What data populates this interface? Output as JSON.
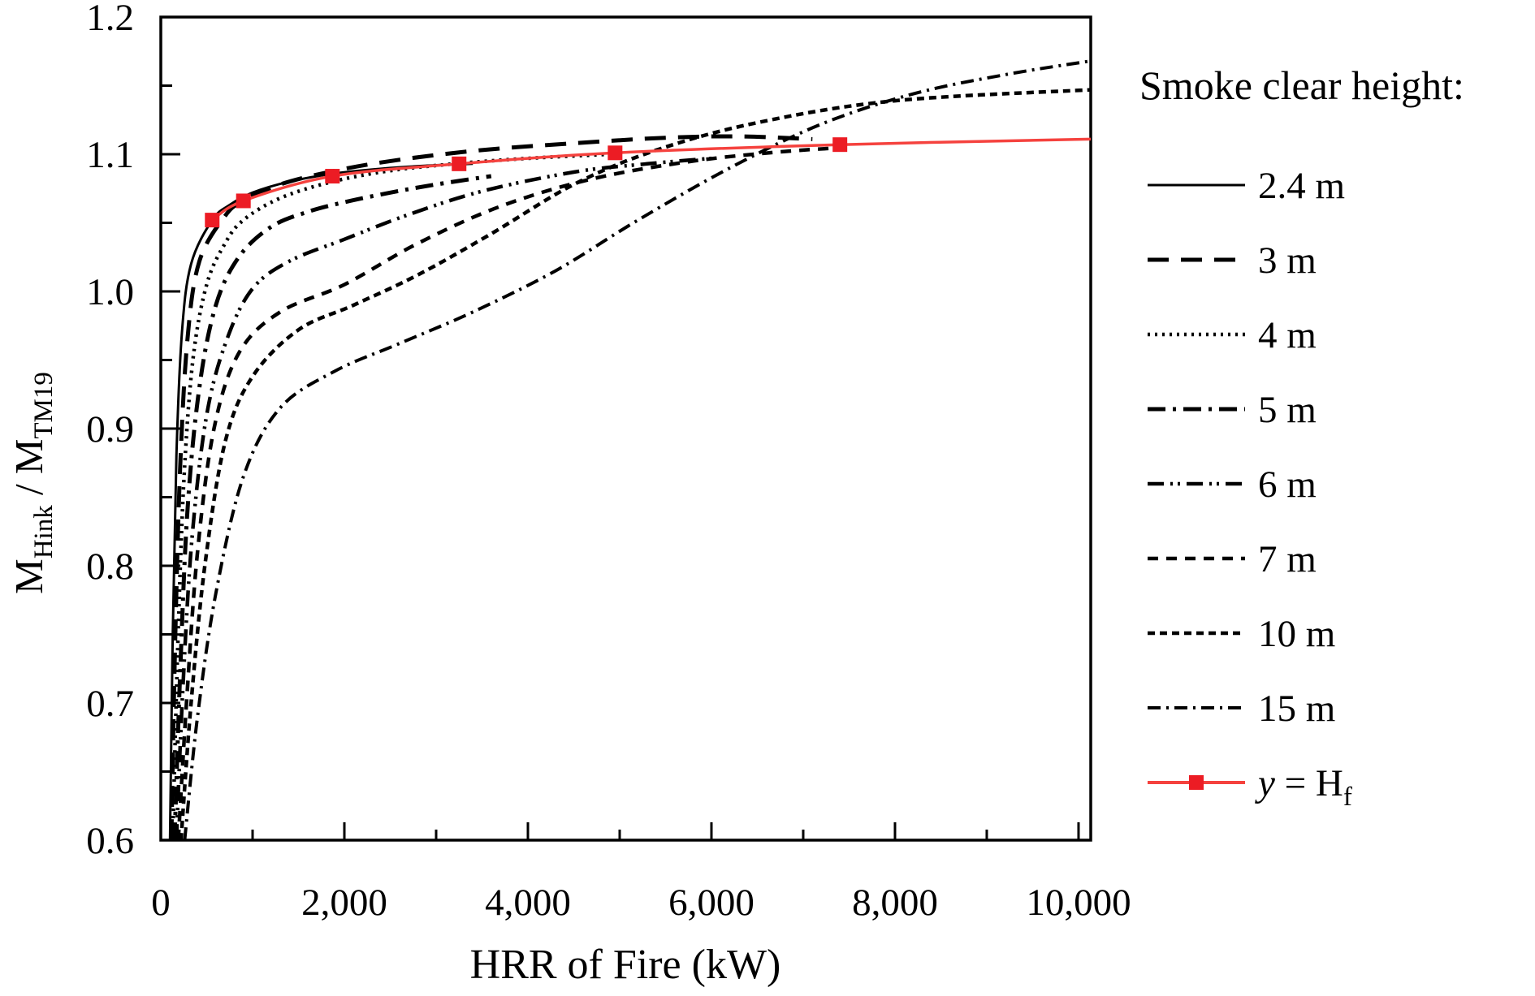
{
  "figure": {
    "background": "#ffffff",
    "frame_color": "#000000"
  },
  "axes": {
    "x": {
      "label": "HRR of Fire (kW)",
      "range": [
        0,
        10133
      ],
      "major_tick_values": [
        0,
        2000,
        4000,
        6000,
        8000,
        10000
      ],
      "major_tick_labels": [
        "0",
        "2,000",
        "4,000",
        "6,000",
        "8,000",
        "10,000"
      ],
      "minor_step": 1000
    },
    "y": {
      "label_plain": "M_Hink / M_TM19",
      "label_parts": [
        {
          "t": "M"
        },
        {
          "t": "Hink",
          "sub": true
        },
        {
          "t": " / M"
        },
        {
          "t": "TM19",
          "sub": true
        }
      ],
      "range": [
        0.6,
        1.2
      ],
      "major_tick_values": [
        0.6,
        0.7,
        0.8,
        0.9,
        1.0,
        1.1,
        1.2
      ],
      "major_tick_labels": [
        "0.6",
        "0.7",
        "0.8",
        "0.9",
        "1.0",
        "1.1",
        "1.2"
      ],
      "minor_step": 0.05
    }
  },
  "legend": {
    "title": "Smoke clear height:",
    "position": "right"
  },
  "colors": {
    "black": "#000000",
    "red_line": "#f5423e",
    "red_marker": "#ec1c24"
  },
  "chart_data": {
    "type": "line",
    "title": "",
    "xlabel": "HRR of Fire (kW)",
    "ylabel": "M_Hink / M_TM19",
    "xlim": [
      0,
      10133
    ],
    "ylim": [
      0.6,
      1.2
    ],
    "grid": false,
    "legend_position": "right",
    "series": [
      {
        "name": "2.4 m",
        "style": {
          "color": "#000000",
          "width": 3,
          "dash": []
        },
        "points": [
          [
            100,
            0.6
          ],
          [
            130,
            0.75
          ],
          [
            170,
            0.88
          ],
          [
            230,
            0.97
          ],
          [
            330,
            1.02
          ],
          [
            560,
            1.052
          ],
          [
            750,
            1.063
          ],
          [
            1000,
            1.072
          ],
          [
            1400,
            1.08
          ],
          [
            1900,
            1.086
          ],
          [
            2500,
            1.09
          ],
          [
            3000,
            1.092
          ],
          [
            3400,
            1.093
          ]
        ]
      },
      {
        "name": "3 m",
        "style": {
          "color": "#000000",
          "width": 5,
          "dash": [
            26,
            15
          ]
        },
        "points": [
          [
            115,
            0.6
          ],
          [
            155,
            0.74
          ],
          [
            210,
            0.87
          ],
          [
            290,
            0.965
          ],
          [
            420,
            1.022
          ],
          [
            700,
            1.055
          ],
          [
            900,
            1.066
          ],
          [
            1300,
            1.078
          ],
          [
            1900,
            1.088
          ],
          [
            2600,
            1.096
          ],
          [
            3500,
            1.103
          ],
          [
            4500,
            1.108
          ],
          [
            5500,
            1.112
          ],
          [
            6300,
            1.113
          ],
          [
            7100,
            1.111
          ]
        ]
      },
      {
        "name": "4 m",
        "style": {
          "color": "#000000",
          "width": 4.5,
          "dash": [
            3,
            6
          ]
        },
        "points": [
          [
            130,
            0.6
          ],
          [
            180,
            0.73
          ],
          [
            250,
            0.86
          ],
          [
            350,
            0.95
          ],
          [
            500,
            1.005
          ],
          [
            700,
            1.035
          ],
          [
            900,
            1.052
          ],
          [
            1300,
            1.068
          ],
          [
            1870,
            1.08
          ],
          [
            2500,
            1.088
          ],
          [
            3200,
            1.093
          ],
          [
            4000,
            1.097
          ],
          [
            4900,
            1.1
          ]
        ]
      },
      {
        "name": "5 m",
        "style": {
          "color": "#000000",
          "width": 5,
          "dash": [
            22,
            9,
            4,
            9
          ]
        },
        "points": [
          [
            150,
            0.6
          ],
          [
            210,
            0.72
          ],
          [
            290,
            0.84
          ],
          [
            420,
            0.93
          ],
          [
            600,
            0.99
          ],
          [
            850,
            1.025
          ],
          [
            1200,
            1.047
          ],
          [
            1600,
            1.058
          ],
          [
            2000,
            1.065
          ],
          [
            2500,
            1.072
          ],
          [
            3000,
            1.078
          ],
          [
            3600,
            1.084
          ]
        ]
      },
      {
        "name": "6 m",
        "style": {
          "color": "#000000",
          "width": 4.5,
          "dash": [
            20,
            8,
            3,
            6,
            3,
            8
          ]
        },
        "points": [
          [
            170,
            0.6
          ],
          [
            240,
            0.71
          ],
          [
            340,
            0.82
          ],
          [
            500,
            0.91
          ],
          [
            720,
            0.965
          ],
          [
            1000,
            1.002
          ],
          [
            1400,
            1.022
          ],
          [
            2000,
            1.038
          ],
          [
            2700,
            1.056
          ],
          [
            3500,
            1.073
          ],
          [
            4500,
            1.087
          ],
          [
            5300,
            1.093
          ],
          [
            6000,
            1.097
          ]
        ]
      },
      {
        "name": "7 m",
        "style": {
          "color": "#000000",
          "width": 4.5,
          "dash": [
            13,
            10
          ]
        },
        "points": [
          [
            190,
            0.6
          ],
          [
            280,
            0.7
          ],
          [
            400,
            0.81
          ],
          [
            580,
            0.9
          ],
          [
            850,
            0.955
          ],
          [
            1300,
            0.985
          ],
          [
            2000,
            1.005
          ],
          [
            2800,
            1.035
          ],
          [
            3700,
            1.062
          ],
          [
            4700,
            1.082
          ],
          [
            5800,
            1.095
          ],
          [
            6800,
            1.102
          ],
          [
            7500,
            1.105
          ]
        ]
      },
      {
        "name": "10 m",
        "style": {
          "color": "#000000",
          "width": 4.5,
          "dash": [
            9,
            6
          ]
        },
        "points": [
          [
            220,
            0.6
          ],
          [
            330,
            0.7
          ],
          [
            480,
            0.8
          ],
          [
            700,
            0.89
          ],
          [
            1000,
            0.938
          ],
          [
            1500,
            0.972
          ],
          [
            2100,
            0.99
          ],
          [
            2800,
            1.012
          ],
          [
            3600,
            1.042
          ],
          [
            4500,
            1.078
          ],
          [
            5400,
            1.103
          ],
          [
            6500,
            1.123
          ],
          [
            8000,
            1.139
          ],
          [
            10133,
            1.147
          ]
        ]
      },
      {
        "name": "15 m",
        "style": {
          "color": "#000000",
          "width": 4,
          "dash": [
            16,
            7,
            3,
            7
          ]
        },
        "points": [
          [
            260,
            0.6
          ],
          [
            400,
            0.69
          ],
          [
            600,
            0.78
          ],
          [
            900,
            0.865
          ],
          [
            1300,
            0.915
          ],
          [
            1900,
            0.942
          ],
          [
            2600,
            0.962
          ],
          [
            3400,
            0.985
          ],
          [
            4300,
            1.015
          ],
          [
            5200,
            1.052
          ],
          [
            6200,
            1.09
          ],
          [
            7200,
            1.122
          ],
          [
            8200,
            1.144
          ],
          [
            9200,
            1.158
          ],
          [
            10133,
            1.168
          ]
        ]
      },
      {
        "name": "y = Hf",
        "label_parts": [
          {
            "t": "y",
            "italic": true
          },
          {
            "t": " = H"
          },
          {
            "t": "f",
            "sub": true
          }
        ],
        "style": {
          "color": "#f5423e",
          "width": 3.5,
          "dash": []
        },
        "marker": {
          "shape": "square",
          "size": 18,
          "color": "#ec1c24",
          "on_first_n": 6
        },
        "points": [
          [
            560,
            1.052
          ],
          [
            900,
            1.066
          ],
          [
            1870,
            1.084
          ],
          [
            3250,
            1.093
          ],
          [
            4950,
            1.101
          ],
          [
            7400,
            1.107
          ],
          [
            10133,
            1.111
          ]
        ]
      }
    ]
  }
}
